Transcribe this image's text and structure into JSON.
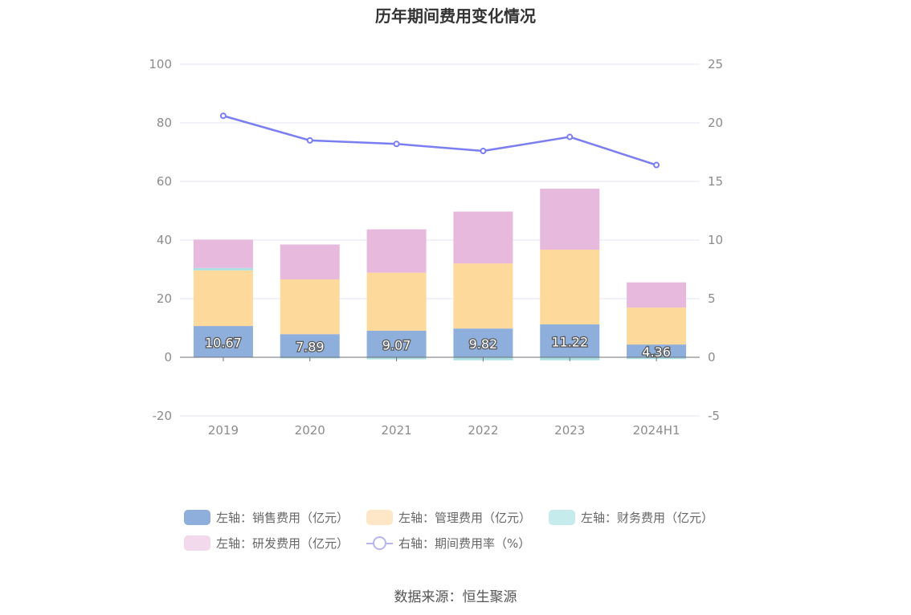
{
  "chart_data": {
    "type": "bar",
    "title": "历年期间费用变化情况",
    "categories": [
      "2019",
      "2020",
      "2021",
      "2022",
      "2023",
      "2024H1"
    ],
    "series": [
      {
        "name": "左轴：销售费用（亿元）",
        "axis": "left",
        "stack": "cost",
        "color": "#8eaedb",
        "values": [
          10.67,
          7.89,
          9.07,
          9.82,
          11.22,
          4.36
        ],
        "labels": [
          "10.67",
          "7.89",
          "9.07",
          "9.82",
          "11.22",
          "4.36"
        ]
      },
      {
        "name": "左轴：管理费用（亿元）",
        "axis": "left",
        "stack": "cost",
        "color": "#fed99c",
        "values": [
          19.0,
          18.7,
          19.8,
          22.2,
          25.5,
          12.6
        ]
      },
      {
        "name": "左轴：财务费用（亿元）",
        "axis": "left",
        "stack": "cost",
        "color": "#a9e0e3",
        "values": [
          0.8,
          -0.4,
          -0.7,
          -1.0,
          -1.0,
          -0.6
        ]
      },
      {
        "name": "左轴：研发费用（亿元）",
        "axis": "left",
        "stack": "cost",
        "color": "#e7b9dc",
        "values": [
          9.7,
          11.9,
          14.8,
          17.7,
          20.8,
          8.6
        ]
      },
      {
        "name": "右轴：期间费用率（%）",
        "axis": "right",
        "type": "line",
        "color": "#7b7ef0",
        "values": [
          20.6,
          18.5,
          18.2,
          17.6,
          18.8,
          16.4
        ]
      }
    ],
    "yAxisLeft": {
      "min": -20,
      "max": 100,
      "ticks": [
        "-20",
        "0",
        "20",
        "40",
        "60",
        "80",
        "100"
      ]
    },
    "yAxisRight": {
      "min": -5,
      "max": 25,
      "ticks": [
        "-5",
        "0",
        "5",
        "10",
        "15",
        "20",
        "25"
      ]
    },
    "grid": true,
    "legend_position": "bottom"
  },
  "legend": {
    "row1": [
      {
        "label": "左轴：销售费用（亿元）",
        "color": "#8eaedb"
      },
      {
        "label": "左轴：管理费用（亿元）",
        "color": "#fde7c6"
      },
      {
        "label": "左轴：财务费用（亿元）",
        "color": "#c5ebec"
      }
    ],
    "row2": [
      {
        "label": "左轴：研发费用（亿元）",
        "color": "#f3d9ec"
      },
      {
        "label": "右轴：期间费用率（%）",
        "color": "#b7b5f0"
      }
    ]
  },
  "source": "数据来源：恒生聚源"
}
